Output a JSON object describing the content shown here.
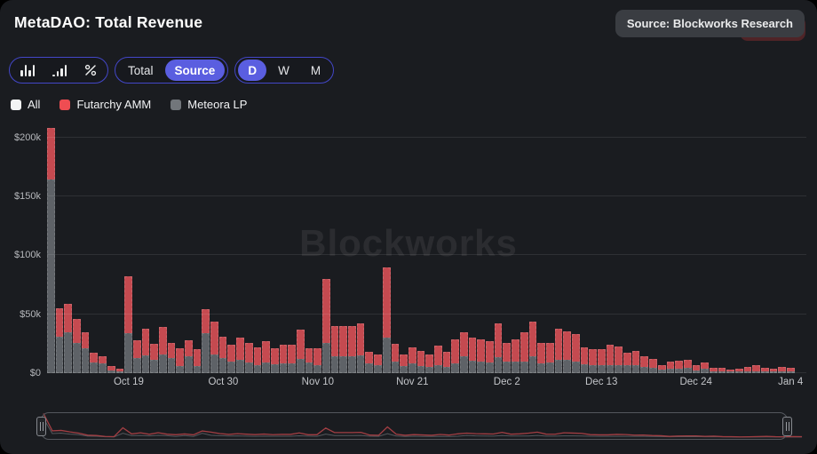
{
  "header": {
    "title": "MetaDAO: Total Revenue",
    "source_badge": "Source: Blockworks Research"
  },
  "toolbar": {
    "chart_type": {
      "options": [
        "stacked-bar",
        "grouped-bar",
        "percent-change"
      ],
      "selected": "stacked-bar"
    },
    "mode": {
      "options": [
        "Total",
        "Source"
      ],
      "selected": "Source"
    },
    "period": {
      "options": [
        "D",
        "W",
        "M"
      ],
      "selected": "D"
    }
  },
  "legend": {
    "items": [
      {
        "label": "All",
        "color": "#f2f3f4"
      },
      {
        "label": "Futarchy AMM",
        "color": "#ef4d52"
      },
      {
        "label": "Meteora LP",
        "color": "#72767b"
      }
    ]
  },
  "watermark": "Blockworks",
  "colors": {
    "futarchy_bar": "#c54a50",
    "meteora_bar": "#5e6267",
    "accent_indigo": "#5a5ee0",
    "card_background": "#1a1c20",
    "navigator_line": "#a23e43"
  },
  "chart_data": {
    "type": "bar",
    "stacked": true,
    "title": "MetaDAO: Total Revenue",
    "unit": "USD thousands ($k)",
    "ylim": [
      0,
      210
    ],
    "ytick_values": [
      0,
      50,
      100,
      150,
      200
    ],
    "ytick_labels": [
      "$0",
      "$50k",
      "$100k",
      "$150k",
      "$200k"
    ],
    "xtick_labels": [
      "Oct 19",
      "Oct 30",
      "Nov 10",
      "Nov 21",
      "Dec 2",
      "Dec 13",
      "Dec 24",
      "Jan 4"
    ],
    "xtick_indices": [
      9,
      20,
      31,
      42,
      53,
      64,
      75,
      86
    ],
    "grid": "horizontal",
    "legend_position": "top-left",
    "categories": [
      "Oct 10",
      "Oct 11",
      "Oct 12",
      "Oct 13",
      "Oct 14",
      "Oct 15",
      "Oct 16",
      "Oct 17",
      "Oct 18",
      "Oct 19",
      "Oct 20",
      "Oct 21",
      "Oct 22",
      "Oct 23",
      "Oct 24",
      "Oct 25",
      "Oct 26",
      "Oct 27",
      "Oct 28",
      "Oct 29",
      "Oct 30",
      "Oct 31",
      "Nov 1",
      "Nov 2",
      "Nov 3",
      "Nov 4",
      "Nov 5",
      "Nov 6",
      "Nov 7",
      "Nov 8",
      "Nov 9",
      "Nov 10",
      "Nov 11",
      "Nov 12",
      "Nov 13",
      "Nov 14",
      "Nov 15",
      "Nov 16",
      "Nov 17",
      "Nov 18",
      "Nov 19",
      "Nov 20",
      "Nov 21",
      "Nov 22",
      "Nov 23",
      "Nov 24",
      "Nov 25",
      "Nov 26",
      "Nov 27",
      "Nov 28",
      "Nov 29",
      "Nov 30",
      "Dec 1",
      "Dec 2",
      "Dec 3",
      "Dec 4",
      "Dec 5",
      "Dec 6",
      "Dec 7",
      "Dec 8",
      "Dec 9",
      "Dec 10",
      "Dec 11",
      "Dec 12",
      "Dec 13",
      "Dec 14",
      "Dec 15",
      "Dec 16",
      "Dec 17",
      "Dec 18",
      "Dec 19",
      "Dec 20",
      "Dec 21",
      "Dec 22",
      "Dec 23",
      "Dec 24",
      "Dec 25",
      "Dec 26",
      "Dec 27",
      "Dec 28",
      "Dec 29",
      "Dec 30",
      "Dec 31",
      "Jan 1",
      "Jan 2",
      "Jan 3",
      "Jan 4"
    ],
    "series": [
      {
        "name": "Meteora LP",
        "color": "#5e6267",
        "values": [
          164,
          31,
          35,
          26,
          21,
          9,
          8,
          2.5,
          1.5,
          34,
          13,
          15,
          11,
          16,
          13,
          6,
          14,
          6,
          34,
          16,
          13,
          10,
          11,
          9,
          7,
          9,
          7.5,
          8,
          8,
          12,
          9,
          7,
          26,
          14,
          14,
          14,
          15,
          8,
          7,
          30,
          10,
          6,
          8,
          6,
          5.5,
          7,
          5.5,
          8,
          14.5,
          10.5,
          9.5,
          9,
          13.5,
          9.5,
          10,
          10,
          14.5,
          8.5,
          9,
          11,
          11,
          9.5,
          7.5,
          6.5,
          6.5,
          7,
          7,
          6.5,
          7,
          5.5,
          4.5,
          3,
          4,
          4,
          4.5,
          2.5,
          3.5,
          1.5,
          1,
          0.5,
          1,
          1.2,
          1.5,
          1,
          0.8,
          1,
          1
        ]
      },
      {
        "name": "Futarchy AMM",
        "color": "#c54a50",
        "values": [
          44,
          24,
          24,
          20,
          14,
          8,
          6,
          3.5,
          2.5,
          48,
          15,
          23,
          14,
          23,
          13,
          15,
          14,
          14,
          20,
          28,
          18,
          14,
          19,
          17,
          15,
          18,
          14,
          16,
          16,
          25,
          12,
          14,
          54,
          26,
          26,
          26,
          27,
          10,
          9,
          60,
          15,
          10,
          14,
          13,
          10.5,
          16.5,
          12.5,
          21,
          20.5,
          20,
          19.5,
          18.5,
          28.5,
          16.5,
          19,
          25,
          29.5,
          17.5,
          16.5,
          27,
          24.5,
          23.5,
          14.5,
          13.5,
          13.5,
          17,
          15.5,
          11,
          11.5,
          8.5,
          7.5,
          3.5,
          6,
          6.5,
          6.5,
          4.5,
          5.5,
          3,
          3,
          1.5,
          2,
          3.8,
          5.5,
          3,
          2.2,
          3.5,
          3
        ]
      }
    ]
  }
}
